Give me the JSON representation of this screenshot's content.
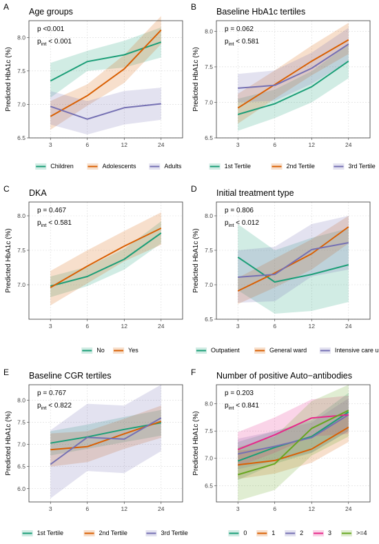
{
  "colors": {
    "series_1": "#1b9e77",
    "series_2": "#d95f02",
    "series_3": "#7570b3",
    "series_4": "#e7298a",
    "series_5": "#66a61e"
  },
  "chart_data": [
    {
      "letter": "A",
      "type": "line",
      "title": "Age groups",
      "ylabel": "Predicted HbA1c (%)",
      "x": [
        "3",
        "6",
        "12",
        "24"
      ],
      "ylim": [
        6.5,
        8.25
      ],
      "yticks": [
        6.5,
        7.0,
        7.5,
        8.0
      ],
      "ytick_labels": [
        "6.5",
        "7.0",
        "7.5",
        "8.0"
      ],
      "annotations": [
        {
          "main": "p <0.001"
        },
        {
          "main": "p",
          "sub": "int",
          "rest": " < 0.001"
        }
      ],
      "series": [
        {
          "name": "Children",
          "color": "#1b9e77",
          "values": [
            7.35,
            7.64,
            7.74,
            7.93
          ],
          "lower": [
            7.1,
            7.5,
            7.55,
            7.7
          ],
          "upper": [
            7.62,
            7.8,
            7.95,
            8.15
          ]
        },
        {
          "name": "Adolescents",
          "color": "#d95f02",
          "values": [
            6.82,
            7.13,
            7.53,
            8.11
          ],
          "lower": [
            6.62,
            6.98,
            7.32,
            7.9
          ],
          "upper": [
            7.05,
            7.3,
            7.74,
            8.32
          ]
        },
        {
          "name": "Adults",
          "color": "#7570b3",
          "values": [
            6.97,
            6.78,
            6.95,
            7.01
          ],
          "lower": [
            6.7,
            6.55,
            6.7,
            6.77
          ],
          "upper": [
            7.2,
            7.05,
            7.2,
            7.25
          ]
        }
      ]
    },
    {
      "letter": "B",
      "type": "line",
      "title": "Baseline HbA1c tertiles",
      "ylabel": "Predicted HbA1c (%)",
      "x": [
        "3",
        "6",
        "12",
        "24"
      ],
      "ylim": [
        6.5,
        8.15
      ],
      "yticks": [
        6.5,
        7.0,
        7.5,
        8.0
      ],
      "ytick_labels": [
        "6.5",
        "7.0",
        "7.5",
        "8.0"
      ],
      "annotations": [
        {
          "main": "p = 0.062"
        },
        {
          "main": "p",
          "sub": "int",
          "rest": " < 0.581"
        }
      ],
      "series": [
        {
          "name": "1st Tertile",
          "color": "#1b9e77",
          "values": [
            6.83,
            6.98,
            7.22,
            7.58
          ],
          "lower": [
            6.6,
            6.78,
            7.0,
            7.34
          ],
          "upper": [
            7.05,
            7.18,
            7.44,
            7.82
          ]
        },
        {
          "name": "2nd Tertile",
          "color": "#d95f02",
          "values": [
            6.92,
            7.25,
            7.58,
            7.88
          ],
          "lower": [
            6.7,
            7.05,
            7.38,
            7.68
          ],
          "upper": [
            7.12,
            7.45,
            7.8,
            8.12
          ]
        },
        {
          "name": "3rd Tertile",
          "color": "#7570b3",
          "values": [
            7.2,
            7.24,
            7.48,
            7.82
          ],
          "lower": [
            7.0,
            7.02,
            7.26,
            7.58
          ],
          "upper": [
            7.4,
            7.45,
            7.7,
            8.05
          ]
        }
      ]
    },
    {
      "letter": "C",
      "type": "line",
      "title": "DKA",
      "ylabel": "Predicted HbA1c (%)",
      "x": [
        "3",
        "6",
        "12",
        "24"
      ],
      "ylim": [
        6.5,
        8.2
      ],
      "yticks": [
        7.0,
        7.5,
        8.0
      ],
      "ytick_labels": [
        "7.0",
        "7.5",
        "8.0"
      ],
      "annotations": [
        {
          "main": "p = 0.467"
        },
        {
          "main": "p",
          "sub": "int",
          "rest": " < 0.581"
        }
      ],
      "series": [
        {
          "name": "No",
          "color": "#1b9e77",
          "values": [
            6.98,
            7.12,
            7.37,
            7.75
          ],
          "lower": [
            6.82,
            6.98,
            7.22,
            7.6
          ],
          "upper": [
            7.12,
            7.26,
            7.52,
            7.92
          ]
        },
        {
          "name": "Yes",
          "color": "#d95f02",
          "values": [
            6.96,
            7.27,
            7.56,
            7.82
          ],
          "lower": [
            6.7,
            7.02,
            7.34,
            7.58
          ],
          "upper": [
            7.2,
            7.5,
            7.78,
            8.05
          ]
        }
      ]
    },
    {
      "letter": "D",
      "type": "line",
      "title": "Initial treatment type",
      "ylabel": "Predicted HbA1c (%)",
      "x": [
        "3",
        "6",
        "12",
        "24"
      ],
      "ylim": [
        6.5,
        8.2
      ],
      "yticks": [
        6.5,
        7.0,
        7.5,
        8.0
      ],
      "ytick_labels": [
        "6.5",
        "7.0",
        "7.5",
        "8.0"
      ],
      "annotations": [
        {
          "main": "p = 0.806"
        },
        {
          "main": "p",
          "sub": "int",
          "rest": " < 0.012"
        }
      ],
      "series": [
        {
          "name": "Outpatient",
          "color": "#1b9e77",
          "values": [
            7.4,
            7.04,
            7.15,
            7.29
          ],
          "lower": [
            6.92,
            6.58,
            6.62,
            6.75
          ],
          "upper": [
            7.88,
            7.5,
            7.68,
            7.82
          ]
        },
        {
          "name": "General ward",
          "color": "#d95f02",
          "values": [
            6.91,
            7.17,
            7.45,
            7.84
          ],
          "lower": [
            6.72,
            6.96,
            7.22,
            7.6
          ],
          "upper": [
            7.1,
            7.38,
            7.66,
            8.0
          ]
        },
        {
          "name": "Intensive care unit",
          "color": "#7570b3",
          "values": [
            7.11,
            7.15,
            7.51,
            7.61
          ],
          "lower": [
            6.74,
            6.76,
            7.12,
            7.22
          ],
          "upper": [
            7.5,
            7.55,
            7.88,
            8.0
          ]
        }
      ]
    },
    {
      "letter": "E",
      "type": "line",
      "title": "Baseline CGR tertiles",
      "ylabel": "Predicted HbA1c (%)",
      "x": [
        "3",
        "6",
        "12",
        "24"
      ],
      "ylim": [
        5.7,
        8.35
      ],
      "yticks": [
        6.0,
        6.5,
        7.0,
        7.5,
        8.0
      ],
      "ytick_labels": [
        "6.0",
        "6.5",
        "7.0",
        "7.5",
        "8.0"
      ],
      "annotations": [
        {
          "main": "p = 0.767"
        },
        {
          "main": "p",
          "sub": "int",
          "rest": " < 0.822"
        }
      ],
      "series": [
        {
          "name": "1st Tertile",
          "color": "#1b9e77",
          "values": [
            7.03,
            7.17,
            7.34,
            7.49
          ],
          "lower": [
            6.75,
            6.9,
            7.05,
            7.2
          ],
          "upper": [
            7.3,
            7.45,
            7.62,
            7.78
          ]
        },
        {
          "name": "2nd Tertile",
          "color": "#d95f02",
          "values": [
            6.88,
            6.95,
            7.24,
            7.52
          ],
          "lower": [
            6.5,
            6.6,
            6.9,
            7.15
          ],
          "upper": [
            7.25,
            7.3,
            7.58,
            7.88
          ]
        },
        {
          "name": "3rd Tertile",
          "color": "#7570b3",
          "values": [
            6.55,
            7.16,
            7.12,
            7.6
          ],
          "lower": [
            5.78,
            6.4,
            6.35,
            6.85
          ],
          "upper": [
            7.32,
            7.92,
            7.88,
            8.35
          ]
        }
      ]
    },
    {
      "letter": "F",
      "type": "line",
      "title": "Number of positive Auto−antibodies",
      "ylabel": "Predicted HbA1c (%)",
      "x": [
        "3",
        "6",
        "12",
        "24"
      ],
      "ylim": [
        6.2,
        8.35
      ],
      "yticks": [
        6.5,
        7.0,
        7.5,
        8.0
      ],
      "ytick_labels": [
        "6.5",
        "7.0",
        "7.5",
        "8.0"
      ],
      "annotations": [
        {
          "main": "p = 0.203"
        },
        {
          "main": "p",
          "sub": "int",
          "rest": " < 0.841"
        }
      ],
      "series": [
        {
          "name": "0",
          "color": "#1b9e77",
          "values": [
            6.95,
            7.2,
            7.4,
            7.85
          ],
          "lower": [
            6.6,
            6.9,
            7.1,
            7.5
          ],
          "upper": [
            7.3,
            7.5,
            7.7,
            8.2
          ]
        },
        {
          "name": "1",
          "color": "#d95f02",
          "values": [
            6.88,
            6.96,
            7.17,
            7.57
          ],
          "lower": [
            6.62,
            6.72,
            6.92,
            7.3
          ],
          "upper": [
            7.14,
            7.2,
            7.42,
            7.84
          ]
        },
        {
          "name": "2",
          "color": "#7570b3",
          "values": [
            7.08,
            7.22,
            7.38,
            7.8
          ],
          "lower": [
            6.8,
            6.95,
            7.1,
            7.5
          ],
          "upper": [
            7.36,
            7.5,
            7.66,
            8.1
          ]
        },
        {
          "name": "3",
          "color": "#e7298a",
          "values": [
            7.16,
            7.43,
            7.74,
            7.8
          ],
          "lower": [
            6.85,
            7.1,
            7.4,
            7.45
          ],
          "upper": [
            7.48,
            7.75,
            8.08,
            8.15
          ]
        },
        {
          "name": ">=4",
          "color": "#66a61e",
          "values": [
            6.7,
            6.9,
            7.55,
            7.88
          ],
          "lower": [
            6.22,
            6.42,
            7.05,
            7.4
          ],
          "upper": [
            7.2,
            7.4,
            8.05,
            8.35
          ]
        }
      ]
    }
  ]
}
